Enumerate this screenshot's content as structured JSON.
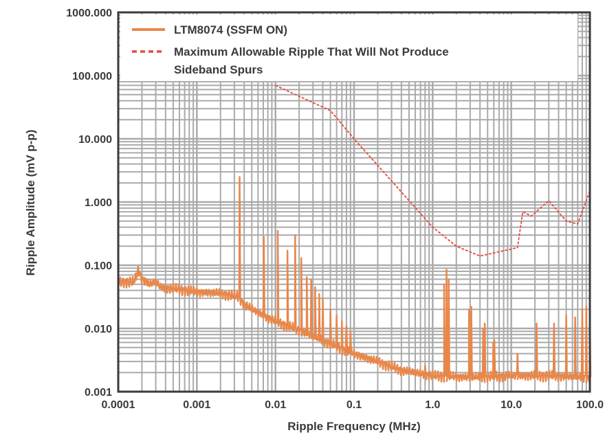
{
  "chart_data": {
    "type": "line",
    "title": "",
    "xlabel": "Ripple Frequency (MHz)",
    "ylabel": "Ripple Amplitude (mV p-p)",
    "x_scale": "log",
    "y_scale": "log",
    "xlim": [
      0.0001,
      100
    ],
    "ylim": [
      0.001,
      1000
    ],
    "x_ticks": [
      "0.0001",
      "0.001",
      "0.01",
      "0.1",
      "1.0",
      "10.0",
      "100.0"
    ],
    "y_ticks": [
      "0.001",
      "0.010",
      "0.100",
      "1.000",
      "10.000",
      "100.000",
      "1000.000"
    ],
    "grid": true,
    "legend_position": "top",
    "colors": {
      "ltm": "#e8874a",
      "limit": "#e8493a",
      "grid": "#aaaaaa",
      "frame": "#3a3a3f"
    },
    "series": [
      {
        "name": "LTM8074 (SSFM ON)",
        "style": "solid",
        "baseline": [
          [
            0.0001,
            0.055
          ],
          [
            0.00016,
            0.055
          ],
          [
            0.00018,
            0.085
          ],
          [
            0.0002,
            0.062
          ],
          [
            0.00025,
            0.05
          ],
          [
            0.0003,
            0.055
          ],
          [
            0.00035,
            0.045
          ],
          [
            0.0006,
            0.042
          ],
          [
            0.001,
            0.038
          ],
          [
            0.002,
            0.036
          ],
          [
            0.0034,
            0.032
          ],
          [
            0.004,
            0.024
          ],
          [
            0.006,
            0.018
          ],
          [
            0.01,
            0.013
          ],
          [
            0.02,
            0.0095
          ],
          [
            0.04,
            0.0065
          ],
          [
            0.1,
            0.004
          ],
          [
            0.2,
            0.003
          ],
          [
            0.4,
            0.0022
          ],
          [
            1,
            0.0018
          ],
          [
            3,
            0.0017
          ],
          [
            10,
            0.0018
          ],
          [
            30,
            0.0018
          ],
          [
            100,
            0.0017
          ]
        ],
        "spikes": [
          [
            0.0035,
            2.5
          ],
          [
            0.0071,
            0.28
          ],
          [
            0.0107,
            0.35
          ],
          [
            0.0142,
            0.17
          ],
          [
            0.0178,
            0.3
          ],
          [
            0.0213,
            0.13
          ],
          [
            0.025,
            0.065
          ],
          [
            0.0285,
            0.06
          ],
          [
            0.032,
            0.045
          ],
          [
            0.036,
            0.035
          ],
          [
            0.04,
            0.03
          ],
          [
            0.05,
            0.02
          ],
          [
            0.06,
            0.016
          ],
          [
            0.07,
            0.013
          ],
          [
            0.08,
            0.011
          ],
          [
            0.09,
            0.009
          ],
          [
            0.8,
            0.0026
          ],
          [
            1.4,
            0.05
          ],
          [
            1.5,
            0.085
          ],
          [
            1.6,
            0.06
          ],
          [
            2.9,
            0.02
          ],
          [
            3.1,
            0.022
          ],
          [
            4.4,
            0.01
          ],
          [
            4.6,
            0.012
          ],
          [
            5.9,
            0.006
          ],
          [
            6.1,
            0.0065
          ],
          [
            12,
            0.004
          ],
          [
            21,
            0.012
          ],
          [
            35,
            0.012
          ],
          [
            50,
            0.016
          ],
          [
            65,
            0.015
          ],
          [
            80,
            0.02
          ],
          [
            90,
            0.022
          ],
          [
            100,
            0.013
          ]
        ]
      },
      {
        "name": "Maximum Allowable Ripple That Will Not Produce Sideband Spurs",
        "style": "dashed",
        "points": [
          [
            0.01,
            70
          ],
          [
            0.05,
            28
          ],
          [
            0.1,
            10
          ],
          [
            1,
            0.4
          ],
          [
            2,
            0.2
          ],
          [
            4,
            0.14
          ],
          [
            12,
            0.19
          ],
          [
            14,
            0.7
          ],
          [
            18,
            0.6
          ],
          [
            30,
            1.05
          ],
          [
            50,
            0.5
          ],
          [
            70,
            0.45
          ],
          [
            100,
            1.5
          ]
        ]
      }
    ]
  }
}
